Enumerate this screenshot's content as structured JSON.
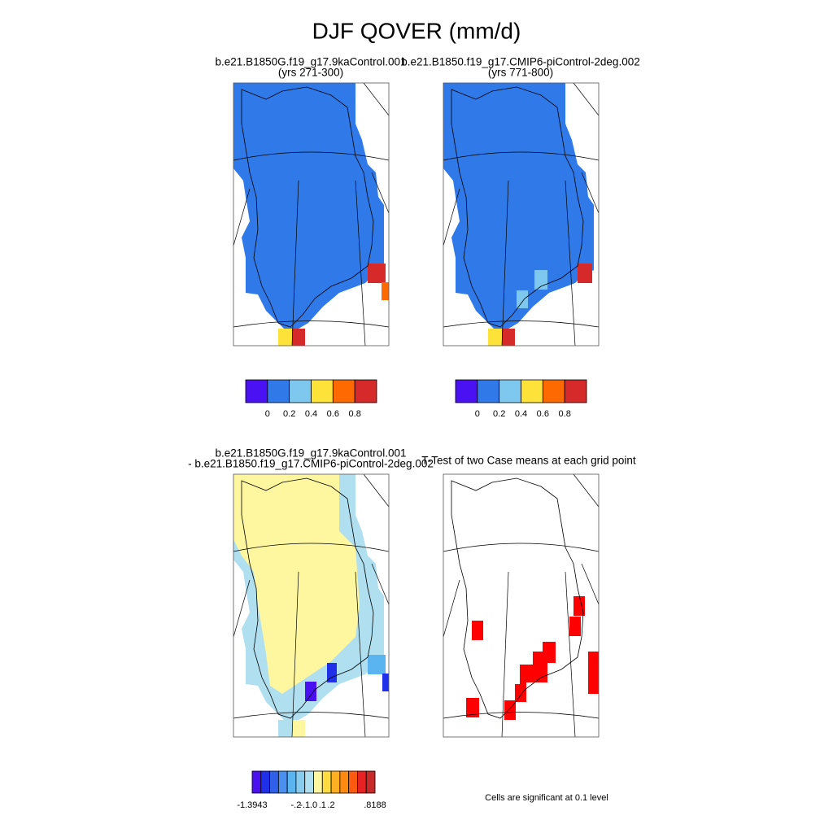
{
  "title": "DJF QOVER (mm/d)",
  "panels": [
    {
      "lines": [
        "b.e21.B1850G.f19_g17.9kaControl.001",
        "(yrs 271-300)"
      ]
    },
    {
      "lines": [
        "b.e21.B1850.f19_g17.CMIP6-piControl-2deg.002",
        "(yrs 771-800)"
      ]
    },
    {
      "lines": [
        "b.e21.B1850G.f19_g17.9kaControl.001",
        "- b.e21.B1850.f19_g17.CMIP6-piControl-2deg.002"
      ]
    },
    {
      "lines": [
        "T-Test of two Case means at each grid point"
      ]
    }
  ],
  "colorbars": [
    {
      "colors": [
        "#4a12f2",
        "#2f7ae8",
        "#7ec8f0",
        "#fde23a",
        "#ff6a00",
        "#d62a2a"
      ],
      "labels": [
        "0",
        "0.2",
        "0.4",
        "0.6",
        "0.8"
      ]
    },
    {
      "colors": [
        "#4a12f2",
        "#2f7ae8",
        "#7ec8f0",
        "#fde23a",
        "#ff6a00",
        "#d62a2a"
      ],
      "labels": [
        "0",
        "0.2",
        "0.4",
        "0.6",
        "0.8"
      ]
    },
    {
      "colors": [
        "#4a10f0",
        "#2030e8",
        "#3060e8",
        "#4a90ee",
        "#5ab4f0",
        "#88cdf0",
        "#b0dff0",
        "#fff7a0",
        "#ffdc40",
        "#ffb020",
        "#ff8a10",
        "#ff5a10",
        "#e62222",
        "#c82a2a"
      ],
      "labels": [
        "-1.3943",
        "-.2",
        "-.1",
        ".0",
        ".1",
        ".2",
        ".8188"
      ]
    }
  ],
  "note": "Cells are significant at 0.1 level"
}
